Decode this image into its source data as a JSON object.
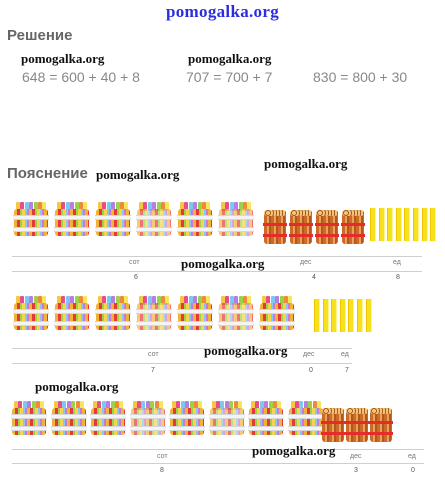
{
  "site": {
    "header": "pomogalka.org"
  },
  "headings": {
    "solution": "Решение",
    "explanation": "Пояснение"
  },
  "equations": [
    "648 = 600 + 40 + 8",
    "707 = 700 + 7",
    "830 = 800 + 30"
  ],
  "watermark": "pomogalka.org",
  "rows": [
    {
      "number": 648,
      "labels": {
        "hundreds": "сот",
        "tens": "дес",
        "units": "ед"
      },
      "digits": {
        "hundreds": "6",
        "tens": "4",
        "units": "8"
      },
      "counts": {
        "hundreds": 6,
        "tens": 4,
        "units": 8
      }
    },
    {
      "number": 707,
      "labels": {
        "hundreds": "сот",
        "tens": "дес",
        "units": "ед"
      },
      "digits": {
        "hundreds": "7",
        "tens": "0",
        "units": "7"
      },
      "counts": {
        "hundreds": 7,
        "tens": 0,
        "units": 7
      }
    },
    {
      "number": 830,
      "labels": {
        "hundreds": "сот",
        "tens": "дес",
        "units": "ед"
      },
      "digits": {
        "hundreds": "8",
        "tens": "3",
        "units": "0"
      },
      "counts": {
        "hundreds": 8,
        "tens": 3,
        "units": 0
      }
    }
  ],
  "colors": {
    "header": "#2a2ee0",
    "heading": "#666666",
    "equation": "#888888",
    "stick": "#f7e01c",
    "ten_band": "#e62b2b"
  }
}
